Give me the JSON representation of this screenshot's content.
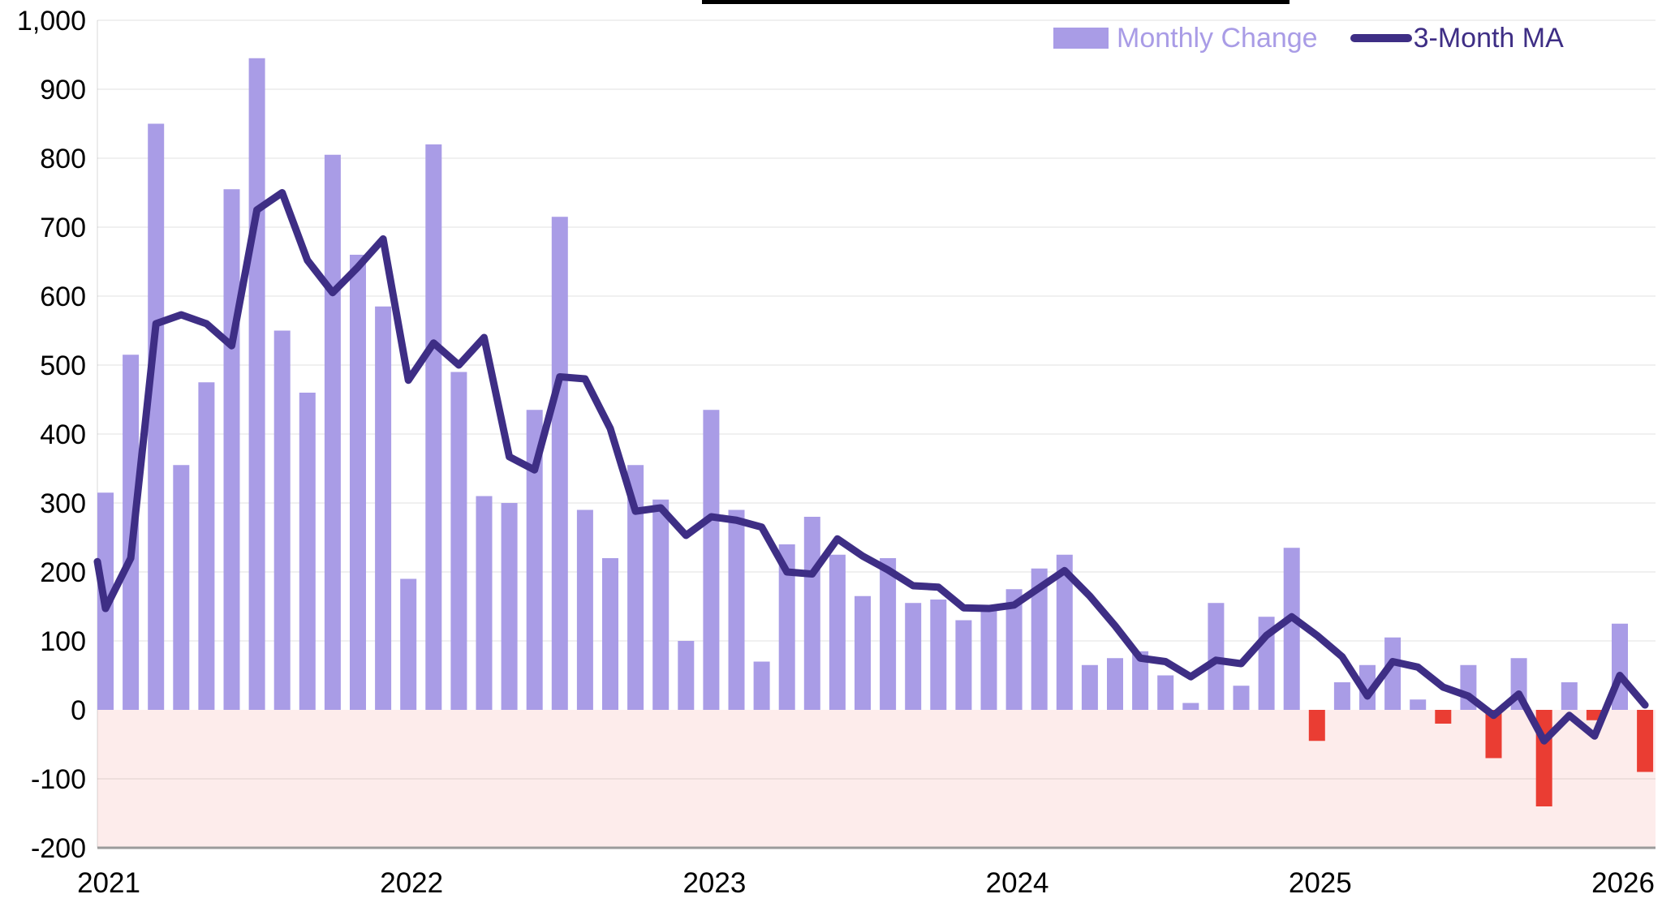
{
  "page": {
    "background": "#ffffff"
  },
  "legend": {
    "items": [
      {
        "label": "Monthly Change",
        "type": "bar",
        "color": "#a99ce6"
      },
      {
        "label": "3-Month MA",
        "type": "line",
        "color": "#3e2e85"
      }
    ]
  },
  "y_axis": {
    "tick_labels": [
      "1,000",
      "900",
      "800",
      "700",
      "600",
      "500",
      "400",
      "300",
      "200",
      "100",
      "0",
      "-100",
      "-200"
    ],
    "tick_values": [
      1000,
      900,
      800,
      700,
      600,
      500,
      400,
      300,
      200,
      100,
      0,
      -100,
      -200
    ]
  },
  "x_axis": {
    "year_labels": [
      "2021",
      "2022",
      "2023",
      "2024",
      "2025",
      "2026"
    ]
  },
  "chart_data": {
    "type": "bar",
    "title": "",
    "x": [
      "Jan 2021",
      "Feb 2021",
      "Mar 2021",
      "Apr 2021",
      "May 2021",
      "Jun 2021",
      "Jul 2021",
      "Aug 2021",
      "Sep 2021",
      "Oct 2021",
      "Nov 2021",
      "Dec 2021",
      "Jan 2022",
      "Feb 2022",
      "Mar 2022",
      "Apr 2022",
      "May 2022",
      "Jun 2022",
      "Jul 2022",
      "Aug 2022",
      "Sep 2022",
      "Oct 2022",
      "Nov 2022",
      "Dec 2022",
      "Jan 2023",
      "Feb 2023",
      "Mar 2023",
      "Apr 2023",
      "May 2023",
      "Jun 2023",
      "Jul 2023",
      "Aug 2023",
      "Sep 2023",
      "Oct 2023",
      "Nov 2023",
      "Dec 2023",
      "Jan 2024",
      "Feb 2024",
      "Mar 2024",
      "Apr 2024",
      "May 2024",
      "Jun 2024",
      "Jul 2024",
      "Aug 2024",
      "Sep 2024",
      "Oct 2024",
      "Nov 2024",
      "Dec 2024",
      "Jan 2025",
      "Feb 2025",
      "Mar 2025",
      "Apr 2025",
      "May 2025",
      "Jun 2025",
      "Jul 2025",
      "Aug 2025",
      "Sep 2025",
      "Oct 2025",
      "Nov 2025",
      "Dec 2025",
      "Jan 2026",
      "Feb 2026"
    ],
    "series": [
      {
        "name": "Monthly Change",
        "type": "bar",
        "color": "#a99ce6",
        "negative_color": "#ea3d33",
        "values": [
          315,
          515,
          850,
          355,
          475,
          755,
          945,
          550,
          460,
          805,
          660,
          585,
          190,
          820,
          490,
          310,
          300,
          435,
          715,
          290,
          220,
          355,
          305,
          100,
          435,
          290,
          70,
          240,
          280,
          225,
          165,
          220,
          155,
          160,
          130,
          150,
          175,
          205,
          225,
          65,
          75,
          85,
          50,
          10,
          155,
          35,
          135,
          235,
          -45,
          40,
          65,
          105,
          15,
          -20,
          65,
          -70,
          75,
          -140,
          40,
          -15,
          125,
          -90
        ]
      },
      {
        "name": "3-Month MA",
        "type": "line",
        "color": "#3e2e85",
        "left_edge_start_value": 215,
        "values": [
          147,
          220,
          560,
          573,
          560,
          528,
          725,
          750,
          652,
          605,
          642,
          683,
          478,
          532,
          500,
          540,
          367,
          348,
          483,
          480,
          408,
          288,
          293,
          253,
          280,
          275,
          265,
          200,
          197,
          248,
          223,
          203,
          180,
          178,
          148,
          147,
          152,
          177,
          202,
          165,
          122,
          75,
          70,
          48,
          72,
          67,
          108,
          135,
          108,
          77,
          20,
          70,
          62,
          33,
          20,
          -8,
          23,
          -45,
          -8,
          -38,
          50,
          7
        ]
      }
    ],
    "ylim": [
      -200,
      1000
    ],
    "grid_step": 100,
    "grid": true,
    "legend_position": "top-right",
    "negative_region_fill": "#fdeceb",
    "plot_background": "#ffffff",
    "baseline_color": "#9b9b9b"
  }
}
